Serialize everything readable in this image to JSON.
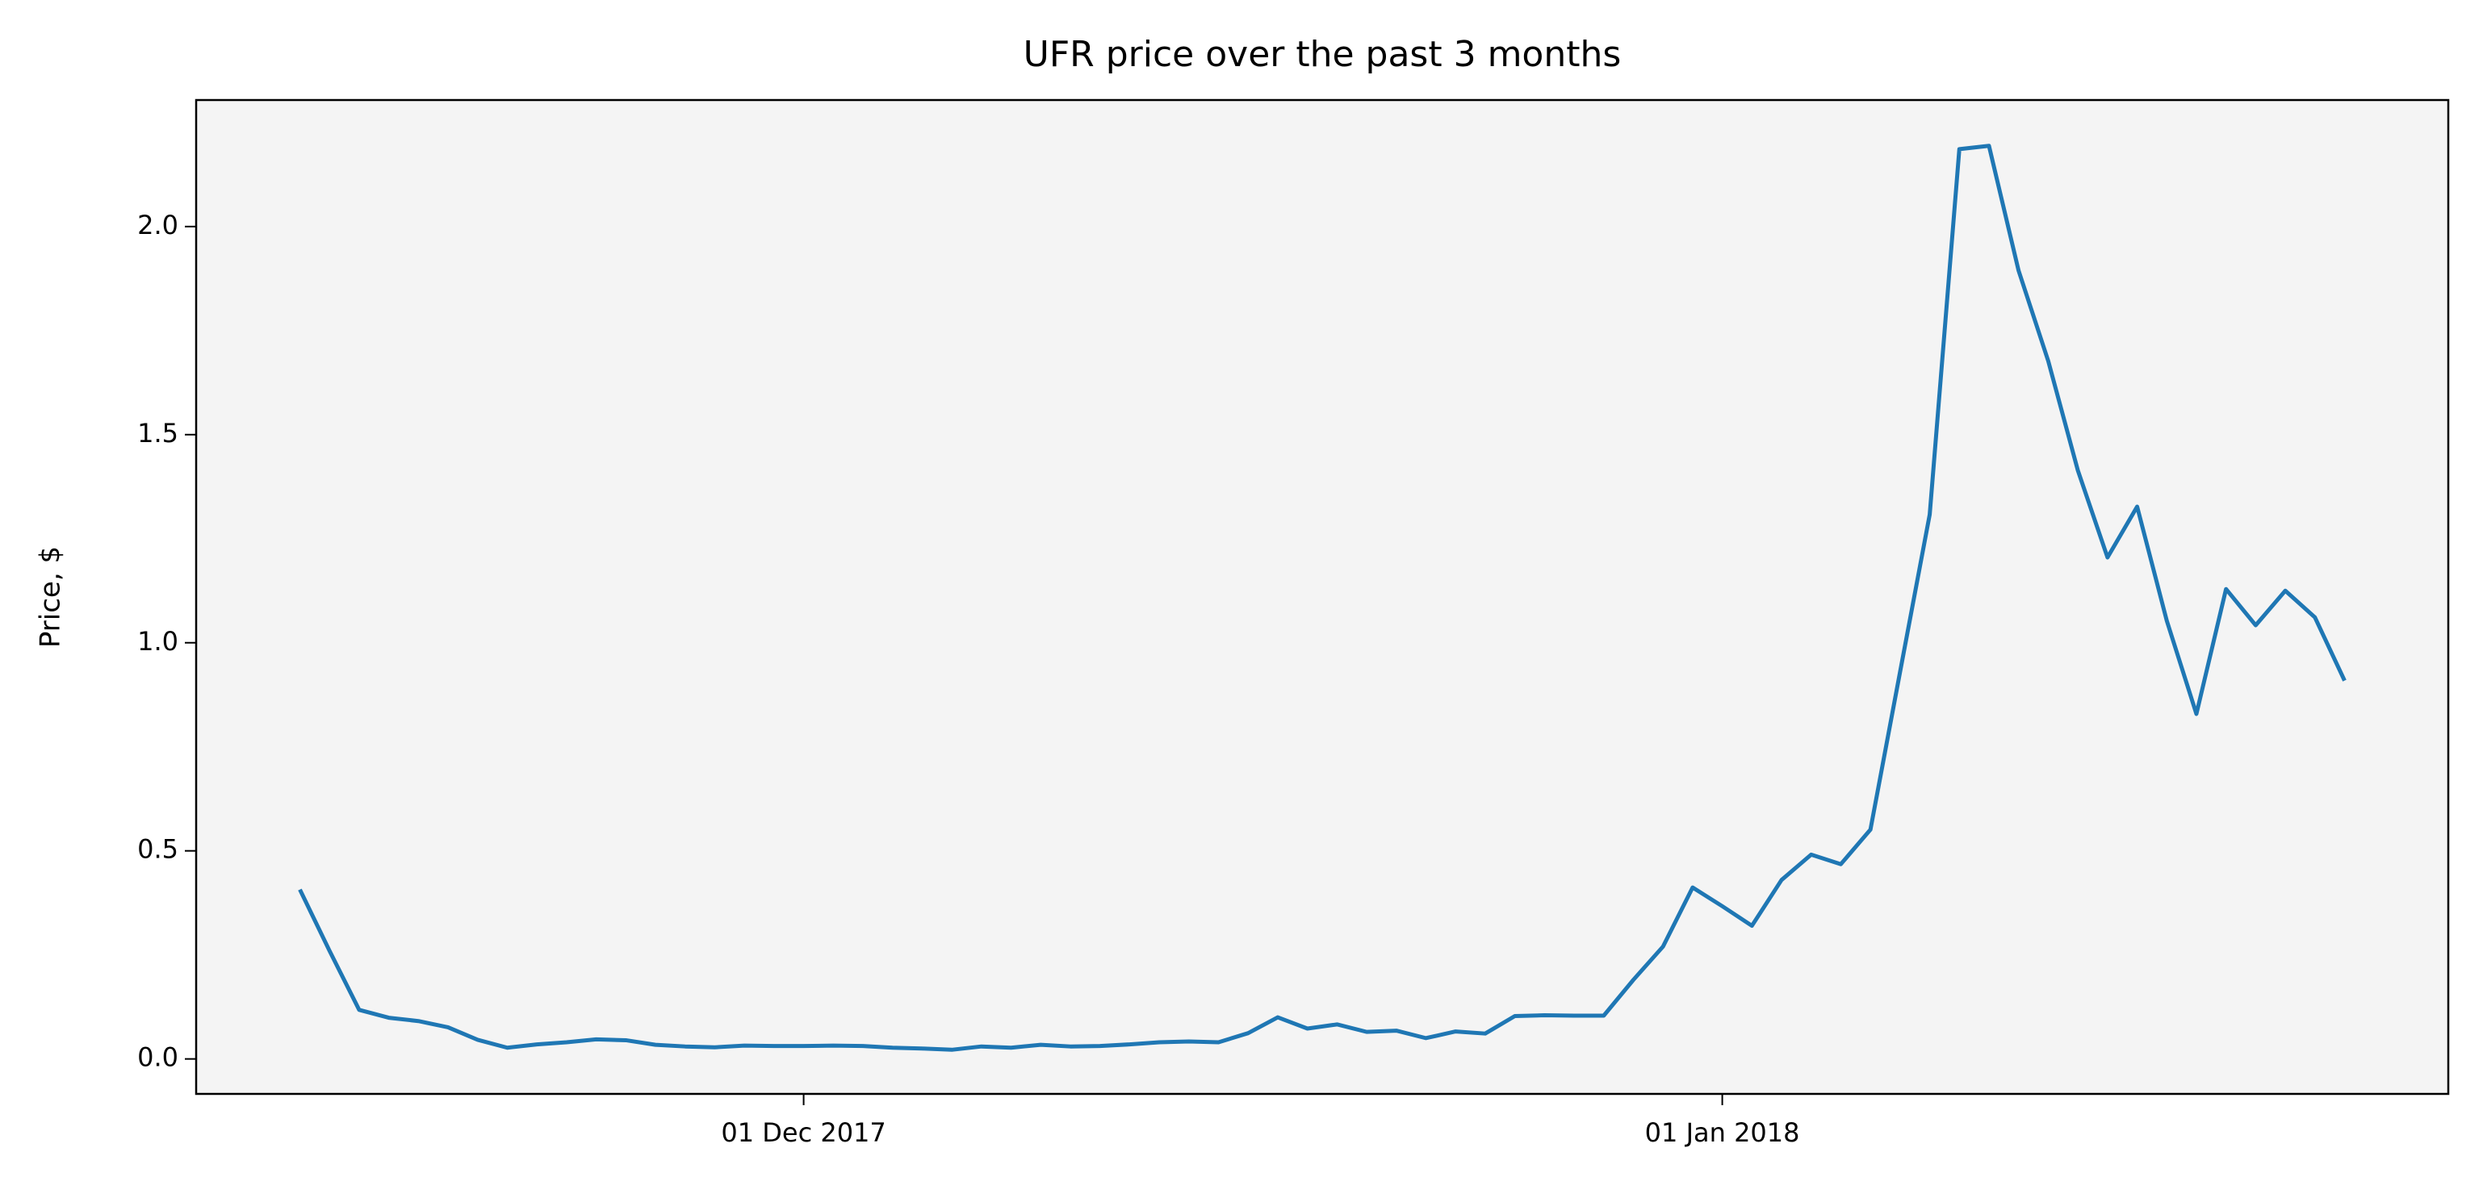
{
  "chart_data": {
    "type": "line",
    "title": "UFR price over the past 3 months",
    "ylabel": "Price, $",
    "x": [
      "2017-11-14",
      "2017-11-15",
      "2017-11-16",
      "2017-11-17",
      "2017-11-18",
      "2017-11-19",
      "2017-11-20",
      "2017-11-21",
      "2017-11-22",
      "2017-11-23",
      "2017-11-24",
      "2017-11-25",
      "2017-11-26",
      "2017-11-27",
      "2017-11-28",
      "2017-11-29",
      "2017-11-30",
      "2017-12-01",
      "2017-12-02",
      "2017-12-03",
      "2017-12-04",
      "2017-12-05",
      "2017-12-06",
      "2017-12-07",
      "2017-12-08",
      "2017-12-09",
      "2017-12-10",
      "2017-12-11",
      "2017-12-12",
      "2017-12-13",
      "2017-12-14",
      "2017-12-15",
      "2017-12-16",
      "2017-12-17",
      "2017-12-18",
      "2017-12-19",
      "2017-12-20",
      "2017-12-21",
      "2017-12-22",
      "2017-12-23",
      "2017-12-24",
      "2017-12-25",
      "2017-12-26",
      "2017-12-27",
      "2017-12-28",
      "2017-12-29",
      "2017-12-30",
      "2017-12-31",
      "2018-01-01",
      "2018-01-02",
      "2018-01-03",
      "2018-01-04",
      "2018-01-05",
      "2018-01-06",
      "2018-01-07",
      "2018-01-08",
      "2018-01-09",
      "2018-01-10",
      "2018-01-11",
      "2018-01-12",
      "2018-01-13",
      "2018-01-14",
      "2018-01-15",
      "2018-01-16",
      "2018-01-17",
      "2018-01-18",
      "2018-01-19",
      "2018-01-20",
      "2018-01-21",
      "2018-01-22"
    ],
    "series": [
      {
        "name": "UFR",
        "color": "#1f77b4",
        "values": [
          0.407,
          0.26,
          0.118,
          0.099,
          0.091,
          0.076,
          0.046,
          0.027,
          0.035,
          0.04,
          0.047,
          0.045,
          0.034,
          0.03,
          0.028,
          0.032,
          0.031,
          0.031,
          0.032,
          0.031,
          0.027,
          0.025,
          0.022,
          0.03,
          0.027,
          0.034,
          0.03,
          0.031,
          0.035,
          0.04,
          0.042,
          0.04,
          0.062,
          0.1,
          0.073,
          0.083,
          0.065,
          0.068,
          0.05,
          0.066,
          0.061,
          0.103,
          0.105,
          0.104,
          0.104,
          0.19,
          0.27,
          0.412,
          0.367,
          0.32,
          0.43,
          0.491,
          0.468,
          0.551,
          0.93,
          1.308,
          2.186,
          2.194,
          1.894,
          1.677,
          1.414,
          1.205,
          1.327,
          1.053,
          0.829,
          1.129,
          1.042,
          1.125,
          1.061,
          0.909
        ]
      }
    ],
    "xlim": [
      "2017-11-10T12:00:00Z",
      "2018-01-25T12:00:00Z"
    ],
    "xticks": [
      {
        "value": "2017-12-01",
        "label": "01 Dec 2017"
      },
      {
        "value": "2018-01-01",
        "label": "01 Jan 2018"
      }
    ],
    "ylim": [
      -0.084,
      2.304
    ],
    "yticks": [
      {
        "value": 0,
        "label": "0.0"
      },
      0.5,
      {
        "value": 1,
        "label": "1.0"
      },
      1.5,
      {
        "value": 2,
        "label": "2.0"
      }
    ],
    "background": "#f4f4f4"
  }
}
